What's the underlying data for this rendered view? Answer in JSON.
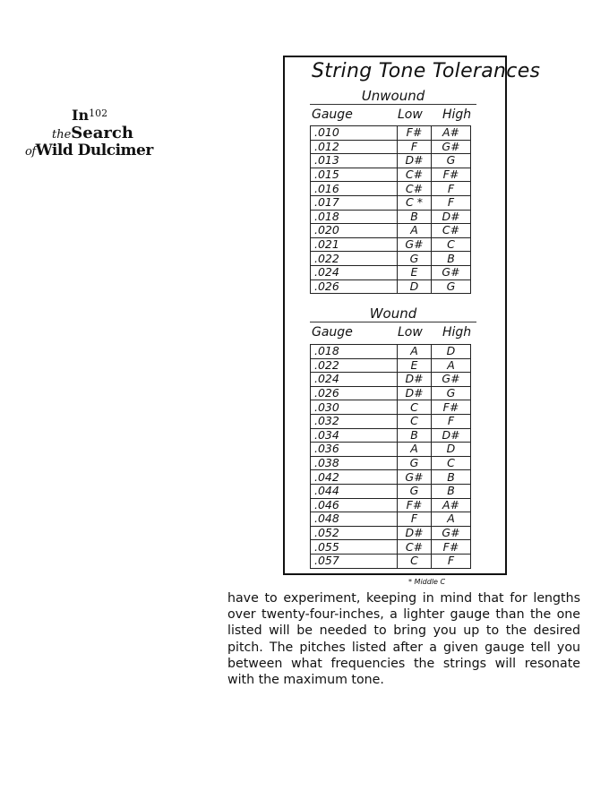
{
  "logo": {
    "line1": "In",
    "page_number": "102",
    "line2": "Search",
    "the": "the",
    "line3": "Wild Dulcimer",
    "of": "of"
  },
  "chart": {
    "title": "String Tone Tolerances",
    "columns": {
      "gauge": "Gauge",
      "low": "Low",
      "high": "High"
    },
    "unwound": {
      "label": "Unwound",
      "rows": [
        [
          ".010",
          "F#",
          "A#"
        ],
        [
          ".012",
          "F",
          "G#"
        ],
        [
          ".013",
          "D#",
          "G"
        ],
        [
          ".015",
          "C#",
          "F#"
        ],
        [
          ".016",
          "C#",
          "F"
        ],
        [
          ".017",
          "C *",
          "F"
        ],
        [
          ".018",
          "B",
          "D#"
        ],
        [
          ".020",
          "A",
          "C#"
        ],
        [
          ".021",
          "G#",
          "C"
        ],
        [
          ".022",
          "G",
          "B"
        ],
        [
          ".024",
          "E",
          "G#"
        ],
        [
          ".026",
          "D",
          "G"
        ]
      ]
    },
    "wound": {
      "label": "Wound",
      "rows": [
        [
          ".018",
          "A",
          "D"
        ],
        [
          ".022",
          "E",
          "A"
        ],
        [
          ".024",
          "D#",
          "G#"
        ],
        [
          ".026",
          "D#",
          "G"
        ],
        [
          ".030",
          "C",
          "F#"
        ],
        [
          ".032",
          "C",
          "F"
        ],
        [
          ".034",
          "B",
          "D#"
        ],
        [
          ".036",
          "A",
          "D"
        ],
        [
          ".038",
          "G",
          "C"
        ],
        [
          ".042",
          "G#",
          "B"
        ],
        [
          ".044",
          "G",
          "B"
        ],
        [
          ".046",
          "F#",
          "A#"
        ],
        [
          ".048",
          "F",
          "A"
        ],
        [
          ".052",
          "D#",
          "G#"
        ],
        [
          ".055",
          "C#",
          "F#"
        ],
        [
          ".057",
          "C",
          "F"
        ]
      ]
    },
    "footnote": "* Middle C"
  },
  "body_text": "have to experiment, keeping in mind that for lengths over twenty-four-inches, a lighter gauge than the one listed will be needed to bring you up to the desired pitch. The pitches listed after a given gauge tell you between what frequencies the strings will resonate with the maximum tone."
}
